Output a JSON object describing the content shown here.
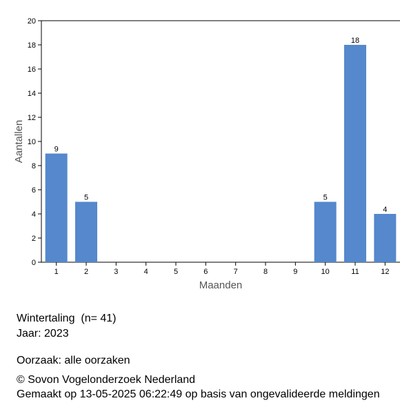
{
  "chart_data": {
    "type": "bar",
    "x_label": "Maanden",
    "y_label": "Aantallen",
    "categories": [
      "1",
      "2",
      "3",
      "4",
      "5",
      "6",
      "7",
      "8",
      "9",
      "10",
      "11",
      "12"
    ],
    "values": [
      9,
      5,
      0,
      0,
      0,
      0,
      0,
      0,
      0,
      5,
      18,
      4
    ],
    "color": "#5588cc",
    "ylim": [
      0,
      20
    ],
    "yticks": [
      0,
      2,
      4,
      6,
      8,
      10,
      12,
      14,
      16,
      18,
      20
    ]
  },
  "info": {
    "species": "Wintertaling  (n= 41)",
    "year": "Jaar: 2023",
    "cause": "Oorzaak: alle oorzaken",
    "copyright": "© Sovon Vogelonderzoek Nederland",
    "made": "Gemaakt op 13-05-2025 06:22:49 op basis van ongevalideerde meldingen"
  }
}
